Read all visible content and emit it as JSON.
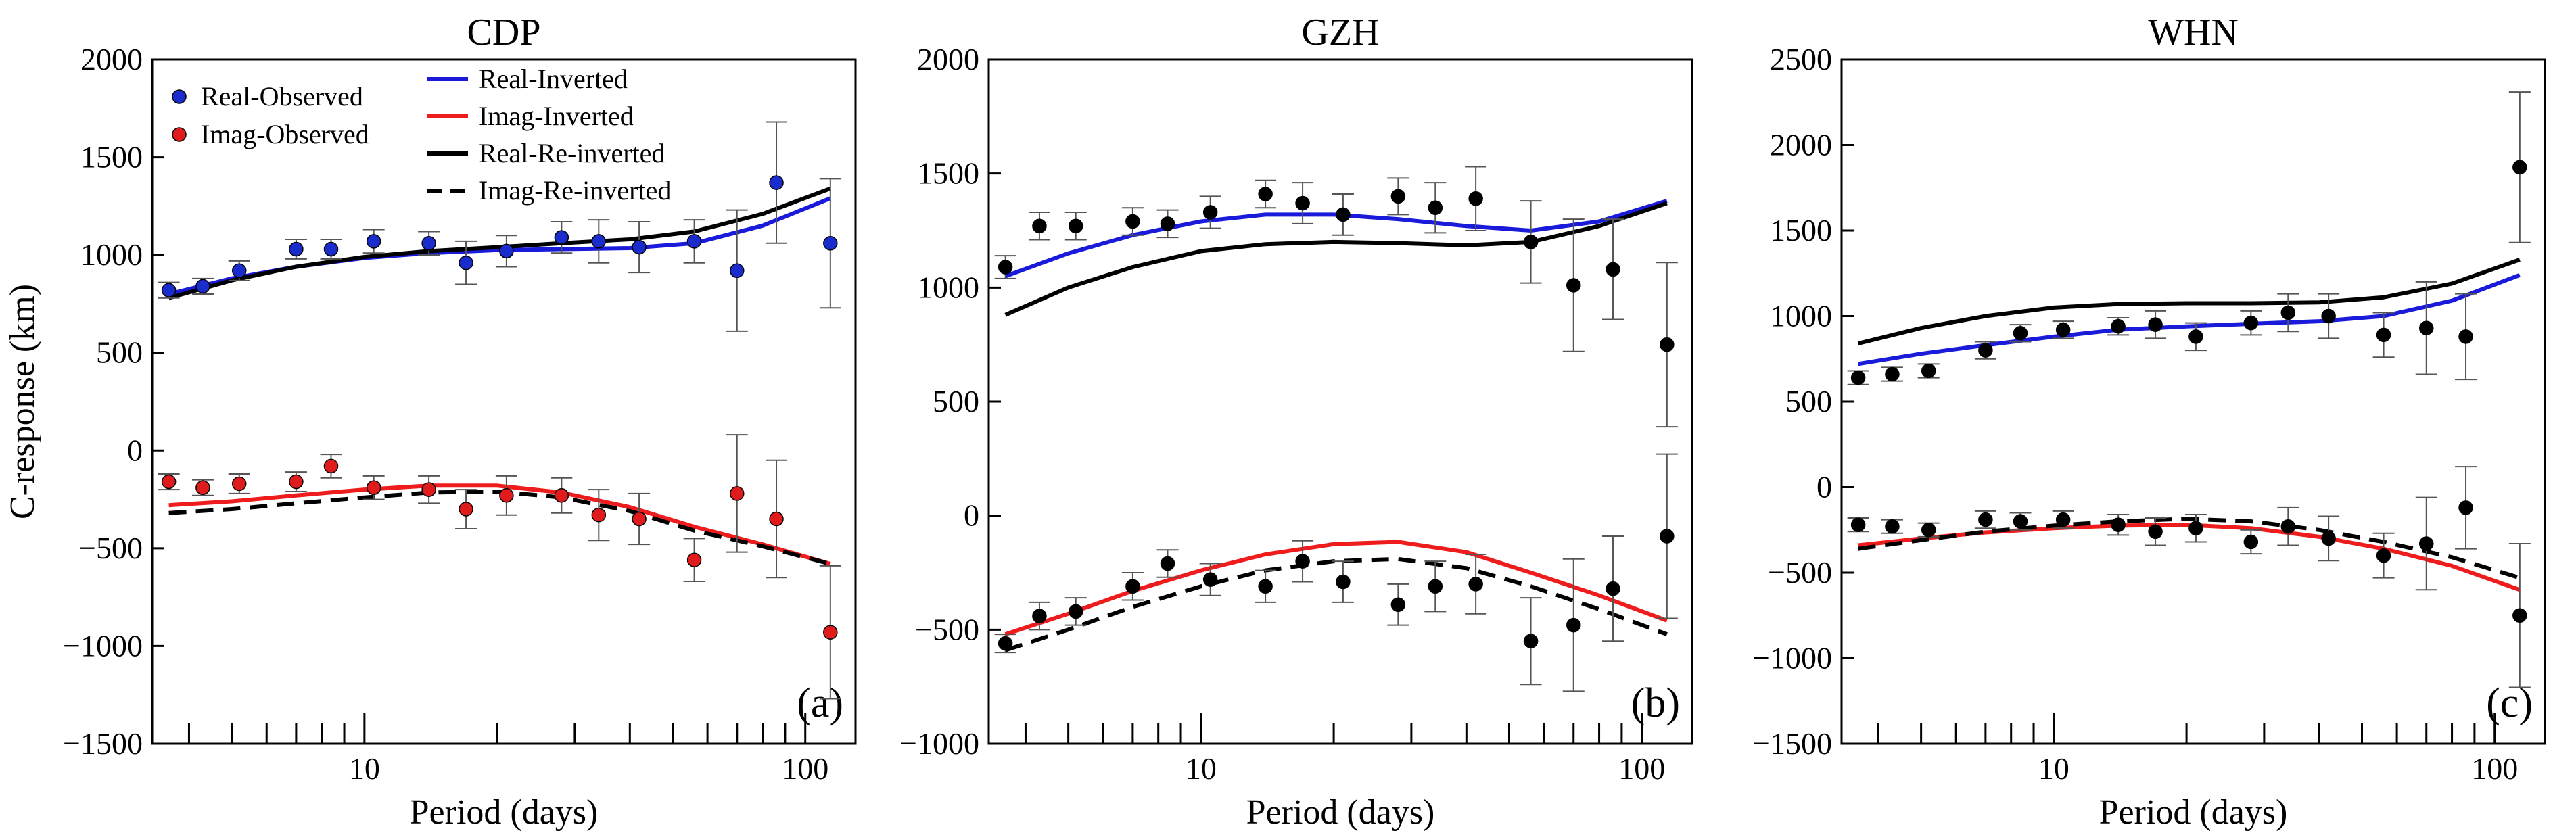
{
  "chart_data": [
    {
      "type": "scatter",
      "title": "CDP",
      "panel_label": "(a)",
      "xlabel": "Period (days)",
      "ylabel": "C-response (km)",
      "xscale": "log",
      "xlim": [
        3.3,
        130
      ],
      "ylim": [
        -1500,
        2000
      ],
      "yticks": [
        -1500,
        -1000,
        -500,
        0,
        500,
        1000,
        1500,
        2000
      ],
      "xticks_labeled": [
        10,
        100
      ],
      "grid": false,
      "legend_position": "top-left",
      "legend": [
        {
          "label": "Real-Observed",
          "kind": "marker",
          "color": "#1a2ccc"
        },
        {
          "label": "Imag-Observed",
          "kind": "marker",
          "color": "#e01b1b"
        },
        {
          "label": "Real-Inverted",
          "kind": "line",
          "color": "#1a1adb"
        },
        {
          "label": "Imag-Inverted",
          "kind": "line",
          "color": "#ee1c1c"
        },
        {
          "label": "Real-Re-inverted",
          "kind": "line",
          "color": "#000000"
        },
        {
          "label": "Imag-Re-inverted",
          "kind": "dashed",
          "color": "#000000"
        }
      ],
      "observed": [
        {
          "name": "Real-Observed",
          "color": "#1a2ccc",
          "x": [
            3.6,
            4.3,
            5.2,
            7.0,
            8.4,
            10.5,
            14.0,
            17.0,
            21.0,
            28.0,
            34.0,
            42.0,
            56.0,
            70.0,
            86.0,
            114.0
          ],
          "y": [
            820,
            840,
            920,
            1030,
            1030,
            1070,
            1060,
            960,
            1020,
            1090,
            1070,
            1040,
            1070,
            920,
            1370,
            1060
          ],
          "err": [
            40,
            40,
            50,
            50,
            50,
            60,
            60,
            110,
            80,
            80,
            110,
            130,
            110,
            310,
            310,
            330
          ]
        },
        {
          "name": "Imag-Observed",
          "color": "#e01b1b",
          "x": [
            3.6,
            4.3,
            5.2,
            7.0,
            8.4,
            10.5,
            14.0,
            17.0,
            21.0,
            28.0,
            34.0,
            42.0,
            56.0,
            70.0,
            86.0,
            114.0
          ],
          "y": [
            -160,
            -190,
            -170,
            -160,
            -80,
            -190,
            -200,
            -300,
            -230,
            -230,
            -330,
            -350,
            -560,
            -220,
            -350,
            -930
          ],
          "err": [
            40,
            40,
            50,
            50,
            60,
            60,
            70,
            100,
            100,
            90,
            130,
            130,
            110,
            300,
            300,
            340
          ]
        }
      ],
      "lines": [
        {
          "name": "Real-Inverted",
          "color": "#1a1adb",
          "dash": false,
          "x": [
            3.6,
            5,
            7,
            10,
            14,
            20,
            28,
            40,
            56,
            80,
            114
          ],
          "y": [
            800,
            880,
            940,
            985,
            1010,
            1025,
            1030,
            1035,
            1060,
            1150,
            1290
          ]
        },
        {
          "name": "Real-Re-inverted",
          "color": "#000000",
          "dash": false,
          "x": [
            3.6,
            5,
            7,
            10,
            14,
            20,
            28,
            40,
            56,
            80,
            114
          ],
          "y": [
            780,
            870,
            940,
            990,
            1020,
            1040,
            1060,
            1080,
            1120,
            1210,
            1340
          ]
        },
        {
          "name": "Imag-Inverted",
          "color": "#ee1c1c",
          "dash": false,
          "x": [
            3.6,
            5,
            7,
            10,
            14,
            20,
            28,
            40,
            56,
            80,
            114
          ],
          "y": [
            -280,
            -260,
            -230,
            -200,
            -180,
            -180,
            -215,
            -290,
            -390,
            -480,
            -580
          ]
        },
        {
          "name": "Imag-Re-inverted",
          "color": "#000000",
          "dash": true,
          "x": [
            3.6,
            5,
            7,
            10,
            14,
            20,
            28,
            40,
            56,
            80,
            114
          ],
          "y": [
            -320,
            -300,
            -270,
            -240,
            -215,
            -210,
            -240,
            -310,
            -410,
            -490,
            -580
          ]
        }
      ]
    },
    {
      "type": "scatter",
      "title": "GZH",
      "panel_label": "(b)",
      "xlabel": "Period (days)",
      "ylabel": "",
      "xscale": "log",
      "xlim": [
        3.3,
        130
      ],
      "ylim": [
        -1000,
        2000
      ],
      "yticks": [
        -1000,
        -500,
        0,
        500,
        1000,
        1500,
        2000
      ],
      "xticks_labeled": [
        10,
        100
      ],
      "grid": false,
      "observed": [
        {
          "name": "Real-Observed",
          "color": "#000000",
          "x": [
            3.6,
            4.3,
            5.2,
            7.0,
            8.4,
            10.5,
            14.0,
            17.0,
            21.0,
            28.0,
            34.0,
            42.0,
            56.0,
            70.0,
            86.0,
            114.0
          ],
          "y": [
            1090,
            1270,
            1270,
            1290,
            1280,
            1330,
            1410,
            1370,
            1320,
            1400,
            1350,
            1390,
            1200,
            1010,
            1080,
            750
          ],
          "err": [
            50,
            60,
            60,
            60,
            60,
            70,
            60,
            90,
            90,
            80,
            110,
            140,
            180,
            290,
            220,
            360
          ]
        },
        {
          "name": "Imag-Observed",
          "color": "#000000",
          "x": [
            3.6,
            4.3,
            5.2,
            7.0,
            8.4,
            10.5,
            14.0,
            17.0,
            21.0,
            28.0,
            34.0,
            42.0,
            56.0,
            70.0,
            86.0,
            114.0
          ],
          "y": [
            -560,
            -440,
            -420,
            -310,
            -210,
            -280,
            -310,
            -200,
            -290,
            -390,
            -310,
            -300,
            -550,
            -480,
            -320,
            -90
          ],
          "err": [
            40,
            60,
            60,
            60,
            60,
            70,
            70,
            90,
            90,
            90,
            110,
            130,
            190,
            290,
            230,
            360
          ]
        }
      ],
      "lines": [
        {
          "name": "Real-Inverted",
          "color": "#1a1adb",
          "dash": false,
          "x": [
            3.6,
            5,
            7,
            10,
            14,
            20,
            28,
            40,
            56,
            80,
            114
          ],
          "y": [
            1050,
            1150,
            1230,
            1290,
            1320,
            1320,
            1300,
            1270,
            1250,
            1290,
            1380
          ]
        },
        {
          "name": "Real-Re-inverted",
          "color": "#000000",
          "dash": false,
          "x": [
            3.6,
            5,
            7,
            10,
            14,
            20,
            28,
            40,
            56,
            80,
            114
          ],
          "y": [
            880,
            1000,
            1090,
            1160,
            1190,
            1200,
            1195,
            1185,
            1200,
            1270,
            1370
          ]
        },
        {
          "name": "Imag-Inverted",
          "color": "#ee1c1c",
          "dash": false,
          "x": [
            3.6,
            5,
            7,
            10,
            14,
            20,
            28,
            40,
            56,
            80,
            114
          ],
          "y": [
            -520,
            -430,
            -330,
            -240,
            -170,
            -125,
            -115,
            -160,
            -250,
            -350,
            -460
          ]
        },
        {
          "name": "Imag-Re-inverted",
          "color": "#000000",
          "dash": true,
          "x": [
            3.6,
            5,
            7,
            10,
            14,
            20,
            28,
            40,
            56,
            80,
            114
          ],
          "y": [
            -590,
            -500,
            -400,
            -310,
            -240,
            -200,
            -190,
            -230,
            -310,
            -410,
            -520
          ]
        }
      ]
    },
    {
      "type": "scatter",
      "title": "WHN",
      "panel_label": "(c)",
      "xlabel": "Period (days)",
      "ylabel": "",
      "xscale": "log",
      "xlim": [
        3.3,
        130
      ],
      "ylim": [
        -1500,
        2500
      ],
      "yticks": [
        -1500,
        -1000,
        -500,
        0,
        500,
        1000,
        1500,
        2000,
        2500
      ],
      "xticks_labeled": [
        10,
        100
      ],
      "grid": false,
      "observed": [
        {
          "name": "Real-Observed",
          "color": "#000000",
          "x": [
            3.6,
            4.3,
            5.2,
            7.0,
            8.4,
            10.5,
            14.0,
            17.0,
            21.0,
            28.0,
            34.0,
            42.0,
            56.0,
            70.0,
            86.0,
            114.0
          ],
          "y": [
            640,
            660,
            680,
            800,
            900,
            920,
            940,
            950,
            880,
            960,
            1020,
            1000,
            890,
            930,
            880,
            1870
          ],
          "err": [
            40,
            40,
            40,
            50,
            50,
            50,
            50,
            80,
            80,
            70,
            110,
            130,
            130,
            270,
            250,
            440
          ]
        },
        {
          "name": "Imag-Observed",
          "color": "#000000",
          "x": [
            3.6,
            4.3,
            5.2,
            7.0,
            8.4,
            10.5,
            14.0,
            17.0,
            21.0,
            28.0,
            34.0,
            42.0,
            56.0,
            70.0,
            86.0,
            114.0
          ],
          "y": [
            -220,
            -230,
            -250,
            -190,
            -200,
            -190,
            -220,
            -260,
            -240,
            -320,
            -230,
            -300,
            -400,
            -330,
            -120,
            -750
          ],
          "err": [
            40,
            40,
            40,
            50,
            50,
            50,
            60,
            80,
            80,
            70,
            110,
            130,
            130,
            270,
            240,
            420
          ]
        }
      ],
      "lines": [
        {
          "name": "Real-Inverted",
          "color": "#1a1adb",
          "dash": false,
          "x": [
            3.6,
            5,
            7,
            10,
            14,
            20,
            28,
            40,
            56,
            80,
            114
          ],
          "y": [
            720,
            780,
            830,
            880,
            920,
            940,
            955,
            970,
            1000,
            1090,
            1240
          ]
        },
        {
          "name": "Real-Re-inverted",
          "color": "#000000",
          "dash": false,
          "x": [
            3.6,
            5,
            7,
            10,
            14,
            20,
            28,
            40,
            56,
            80,
            114
          ],
          "y": [
            840,
            930,
            1000,
            1050,
            1070,
            1075,
            1075,
            1080,
            1110,
            1190,
            1330
          ]
        },
        {
          "name": "Imag-Inverted",
          "color": "#ee1c1c",
          "dash": false,
          "x": [
            3.6,
            5,
            7,
            10,
            14,
            20,
            28,
            40,
            56,
            80,
            114
          ],
          "y": [
            -340,
            -300,
            -265,
            -240,
            -225,
            -220,
            -240,
            -290,
            -360,
            -460,
            -600
          ]
        },
        {
          "name": "Imag-Re-inverted",
          "color": "#000000",
          "dash": true,
          "x": [
            3.6,
            5,
            7,
            10,
            14,
            20,
            28,
            40,
            56,
            80,
            114
          ],
          "y": [
            -360,
            -310,
            -260,
            -225,
            -200,
            -185,
            -200,
            -250,
            -320,
            -410,
            -530
          ]
        }
      ]
    }
  ]
}
